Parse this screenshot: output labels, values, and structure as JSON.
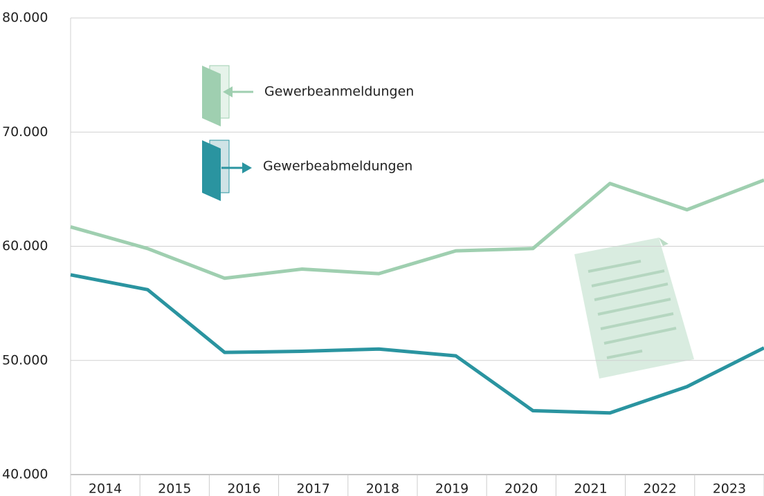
{
  "chart_data": {
    "type": "line",
    "categories": [
      "2014",
      "2015",
      "2016",
      "2017",
      "2018",
      "2019",
      "2020",
      "2021",
      "2022",
      "2023"
    ],
    "series": [
      {
        "name": "Gewerbeanmeldungen",
        "color": "#9fcfb0",
        "values": [
          61700,
          59800,
          57200,
          58000,
          57600,
          59600,
          59800,
          65500,
          63200,
          65800
        ]
      },
      {
        "name": "Gewerbeabmeldungen",
        "color": "#2a94a0",
        "values": [
          57500,
          56200,
          50700,
          50800,
          51000,
          50400,
          45600,
          45400,
          47700,
          51100
        ]
      }
    ],
    "ylim": [
      40000,
      80000
    ],
    "yticks": [
      {
        "value": 40000,
        "label": "40.000"
      },
      {
        "value": 50000,
        "label": "50.000"
      },
      {
        "value": 60000,
        "label": "60.000"
      },
      {
        "value": 70000,
        "label": "70.000"
      },
      {
        "value": 80000,
        "label": "80.000"
      }
    ],
    "grid": true
  }
}
